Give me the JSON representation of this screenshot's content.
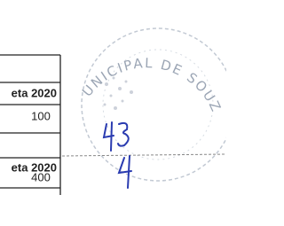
{
  "table": {
    "rows": [
      [
        "eta 2020"
      ],
      [
        "100"
      ],
      [
        "eta 2020"
      ],
      [
        "400"
      ]
    ]
  },
  "stamp": {
    "text": "UNICIPAL DE SOUZ"
  }
}
